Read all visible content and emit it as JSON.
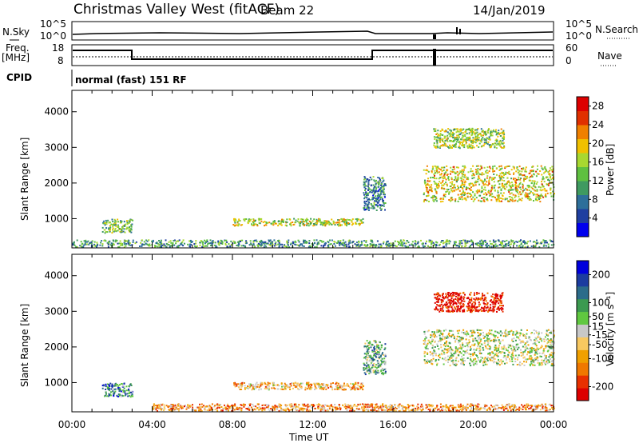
{
  "header": {
    "station_title": "Christmas Valley West (fitACF)",
    "beam_label": "Beam 22",
    "date_label": "14/Jan/2019"
  },
  "noise_panel": {
    "left_label": "N.Sky",
    "right_label": "N.Search",
    "left_ticks": [
      "10^5",
      "10^0"
    ],
    "right_ticks": [
      "10^5",
      "10^0"
    ]
  },
  "freq_panel": {
    "left_label_line1": "Freq.",
    "left_label_line2": "[MHz]",
    "right_label": "Nave",
    "left_ticks": [
      "18",
      "8"
    ],
    "right_ticks": [
      "60",
      "0"
    ]
  },
  "cpid_panel": {
    "label": "CPID",
    "mode_text": "normal (fast) 151 RF"
  },
  "colors": {
    "power_scale": [
      "#0000ee",
      "#1f3fa0",
      "#2e6f9a",
      "#3f9a60",
      "#5fc040",
      "#a8d830",
      "#f0c000",
      "#f08000",
      "#e03000",
      "#dd0000"
    ],
    "velocity_scale": [
      "#dd0000",
      "#e83000",
      "#f07800",
      "#f0a000",
      "#f8c860",
      "#c8c8c8",
      "#60c840",
      "#3c9a50",
      "#2c6c8a",
      "#1c3ca0",
      "#0000dd"
    ]
  },
  "chart_data": [
    {
      "type": "heatmap",
      "panel": "power",
      "ylabel": "Slant Range [km]",
      "xlabel": "",
      "x_ticks": [
        "00:00",
        "04:00",
        "08:00",
        "12:00",
        "16:00",
        "20:00",
        "00:00"
      ],
      "xlim": [
        0,
        24
      ],
      "ylim": [
        180,
        4600
      ],
      "y_ticks": [
        1000,
        2000,
        3000,
        4000
      ],
      "colorbar": {
        "label": "Power [dB]",
        "ticks": [
          4,
          8,
          12,
          16,
          20,
          24,
          28
        ],
        "range": [
          0,
          30
        ]
      },
      "regions": [
        {
          "t": [
            1.5,
            3.0
          ],
          "r": [
            620,
            1000
          ],
          "level": 0.45
        },
        {
          "t": [
            8.0,
            14.5
          ],
          "r": [
            820,
            1020
          ],
          "level": 0.55
        },
        {
          "t": [
            0.0,
            24.0
          ],
          "r": [
            220,
            420
          ],
          "level": 0.35
        },
        {
          "t": [
            18.0,
            21.5
          ],
          "r": [
            3000,
            3550
          ],
          "level": 0.5
        },
        {
          "t": [
            17.5,
            24.0
          ],
          "r": [
            1500,
            2500
          ],
          "level": 0.6
        },
        {
          "t": [
            14.5,
            15.6
          ],
          "r": [
            1250,
            2200
          ],
          "level": 0.3
        }
      ]
    },
    {
      "type": "heatmap",
      "panel": "velocity",
      "ylabel": "Slant Range [km]",
      "xlabel": "Time UT",
      "x_ticks": [
        "00:00",
        "04:00",
        "08:00",
        "12:00",
        "16:00",
        "20:00",
        "00:00"
      ],
      "xlim": [
        0,
        24
      ],
      "ylim": [
        180,
        4600
      ],
      "y_ticks": [
        1000,
        2000,
        3000,
        4000
      ],
      "colorbar": {
        "label": "Velocity [m s⁻¹]",
        "ticks": [
          200,
          100,
          50,
          15,
          -15,
          -50,
          -100,
          -200
        ],
        "range": [
          -250,
          250
        ]
      },
      "regions": [
        {
          "t": [
            1.5,
            3.0
          ],
          "r": [
            620,
            1000
          ],
          "level": 0.72
        },
        {
          "t": [
            8.0,
            14.5
          ],
          "r": [
            820,
            1020
          ],
          "level": 0.35
        },
        {
          "t": [
            4.0,
            24.0
          ],
          "r": [
            220,
            420
          ],
          "level": 0.3
        },
        {
          "t": [
            18.0,
            21.5
          ],
          "r": [
            3000,
            3550
          ],
          "level": 0.05
        },
        {
          "t": [
            17.5,
            24.0
          ],
          "r": [
            1500,
            2500
          ],
          "level": 0.5
        },
        {
          "t": [
            14.5,
            15.6
          ],
          "r": [
            1250,
            2200
          ],
          "level": 0.65
        }
      ]
    }
  ]
}
